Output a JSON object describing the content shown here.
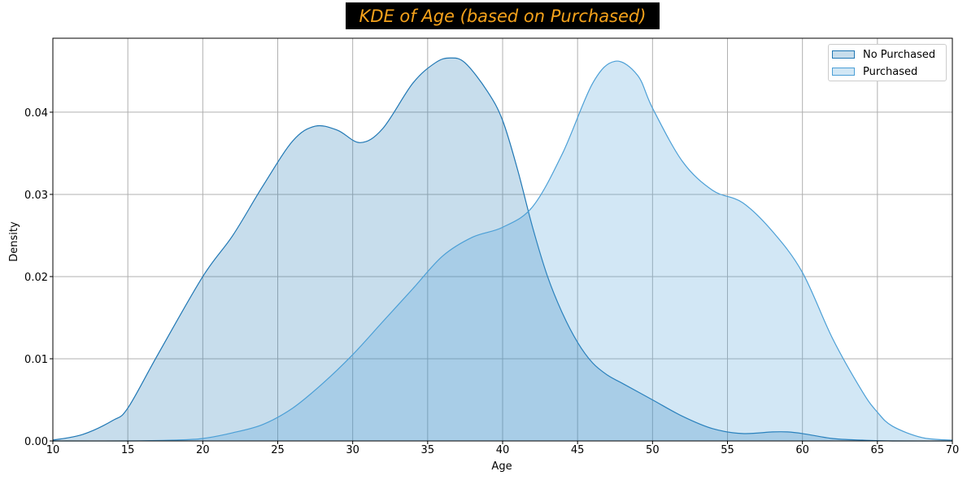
{
  "chart_data": {
    "type": "area",
    "title": "KDE of Age (based on Purchased)",
    "xlabel": "Age",
    "ylabel": "Density",
    "xlim": [
      10,
      70
    ],
    "ylim": [
      0,
      0.049
    ],
    "x_ticks": [
      10,
      15,
      20,
      25,
      30,
      35,
      40,
      45,
      50,
      55,
      60,
      65,
      70
    ],
    "y_ticks": [
      0.0,
      0.01,
      0.02,
      0.03,
      0.04
    ],
    "x_tick_labels": [
      "10",
      "15",
      "20",
      "25",
      "30",
      "35",
      "40",
      "45",
      "50",
      "55",
      "60",
      "65",
      "70"
    ],
    "y_tick_labels": [
      "0.00",
      "0.01",
      "0.02",
      "0.03",
      "0.04"
    ],
    "grid": true,
    "legend_position": "top-right",
    "series": [
      {
        "name": "No Purchased",
        "color": "#1f77b4",
        "x": [
          10,
          12,
          14,
          15,
          17,
          20,
          22,
          24,
          26,
          27.5,
          29,
          30.5,
          32,
          34,
          35.5,
          36.5,
          37.5,
          39,
          40,
          41,
          42,
          43,
          44,
          45,
          46,
          47,
          48,
          50,
          52,
          54,
          56,
          58,
          59,
          60,
          62,
          64,
          66,
          70
        ],
        "y": [
          0.0001,
          0.0008,
          0.0025,
          0.004,
          0.0105,
          0.02,
          0.025,
          0.031,
          0.0365,
          0.0383,
          0.0378,
          0.0363,
          0.038,
          0.0435,
          0.046,
          0.0466,
          0.046,
          0.0425,
          0.039,
          0.033,
          0.026,
          0.02,
          0.0155,
          0.012,
          0.0095,
          0.008,
          0.007,
          0.005,
          0.003,
          0.0015,
          0.0009,
          0.0011,
          0.0011,
          0.0009,
          0.0003,
          0.0001,
          0.0,
          0.0
        ]
      },
      {
        "name": "Purchased",
        "color": "#4b9fd6",
        "x": [
          10,
          15,
          18,
          20,
          22,
          24,
          26,
          28,
          30,
          32,
          34,
          36,
          38,
          40,
          42,
          44,
          46,
          47.5,
          49,
          50,
          52,
          54,
          56,
          58,
          60,
          62,
          64,
          65,
          66,
          68,
          70
        ],
        "y": [
          0.0,
          0.0,
          0.0001,
          0.0003,
          0.001,
          0.002,
          0.004,
          0.007,
          0.0105,
          0.0145,
          0.0185,
          0.0225,
          0.0248,
          0.026,
          0.0285,
          0.035,
          0.0435,
          0.0462,
          0.0445,
          0.0405,
          0.034,
          0.0305,
          0.029,
          0.0255,
          0.0205,
          0.0125,
          0.006,
          0.0035,
          0.0018,
          0.0004,
          0.0001
        ]
      }
    ]
  }
}
